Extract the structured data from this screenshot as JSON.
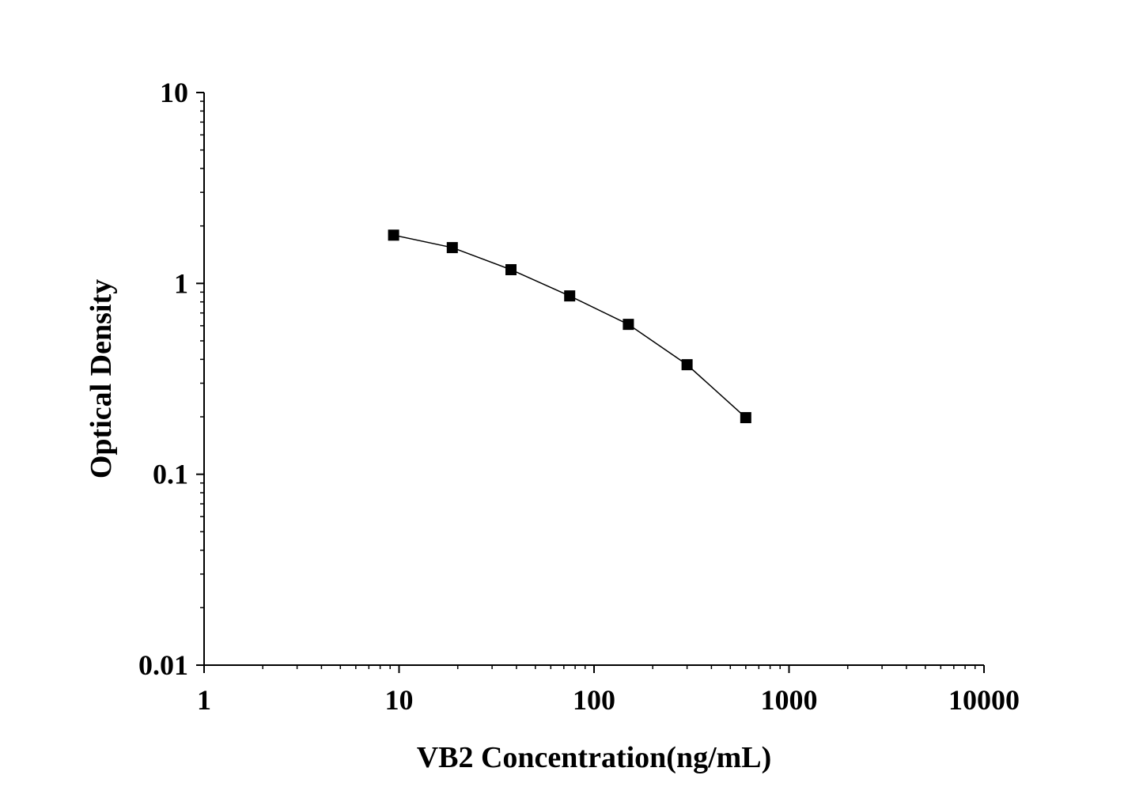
{
  "chart_data": {
    "type": "line",
    "title": "",
    "xlabel": "VB2 Concentration(ng/mL)",
    "ylabel": "Optical Density",
    "x_scale": "log",
    "y_scale": "log",
    "xlim": [
      1,
      10000
    ],
    "ylim": [
      0.01,
      10
    ],
    "x_ticks": [
      "1",
      "10",
      "100",
      "1000",
      "10000"
    ],
    "y_ticks": [
      "0.01",
      "0.1",
      "1",
      "10"
    ],
    "grid": false,
    "marker": "square",
    "series_color": "#000000",
    "series": [
      {
        "x": [
          9.375,
          18.75,
          37.5,
          75,
          150,
          300,
          600
        ],
        "y": [
          1.79,
          1.54,
          1.18,
          0.86,
          0.61,
          0.375,
          0.198
        ]
      }
    ]
  }
}
